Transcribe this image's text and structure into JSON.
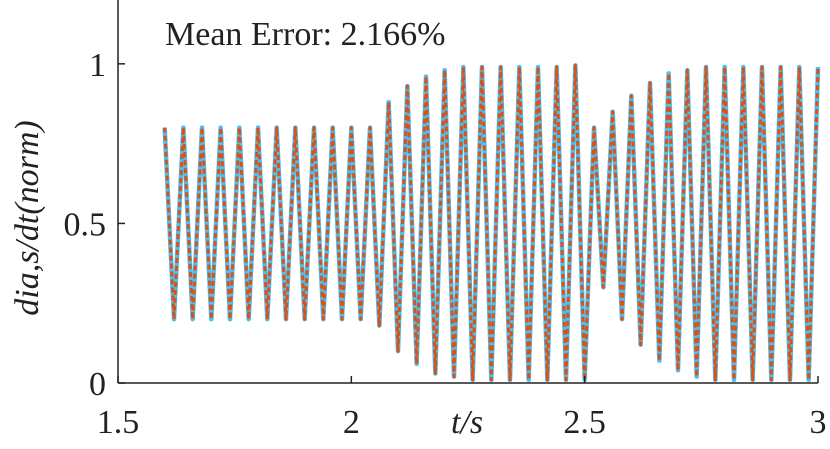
{
  "chart_data": {
    "type": "line",
    "annotation": "Mean Error: 2.166%",
    "annotation_color": "#a0173f",
    "xlabel": "t/s",
    "ylabel": "dia,s/dt(norm)",
    "xlim": [
      1.5,
      3
    ],
    "xticks": [
      1.5,
      2,
      2.5,
      3
    ],
    "ylim": [
      0,
      1.2
    ],
    "yticks": [
      0,
      0.5,
      1
    ],
    "x": [
      1.6,
      1.62,
      1.64,
      1.66,
      1.68,
      1.7,
      1.72,
      1.74,
      1.76,
      1.78,
      1.8,
      1.82,
      1.84,
      1.86,
      1.88,
      1.9,
      1.92,
      1.94,
      1.96,
      1.98,
      2.0,
      2.02,
      2.04,
      2.06,
      2.08,
      2.1,
      2.12,
      2.14,
      2.16,
      2.18,
      2.2,
      2.22,
      2.24,
      2.26,
      2.28,
      2.3,
      2.32,
      2.34,
      2.36,
      2.38,
      2.4,
      2.42,
      2.44,
      2.46,
      2.48,
      2.5,
      2.52,
      2.54,
      2.56,
      2.58,
      2.6,
      2.62,
      2.64,
      2.66,
      2.68,
      2.7,
      2.72,
      2.74,
      2.76,
      2.78,
      2.8,
      2.82,
      2.84,
      2.86,
      2.88,
      2.9,
      2.92,
      2.94,
      2.96,
      2.98,
      3.0
    ],
    "series": [
      {
        "color": "#4dbeee",
        "dashed": false,
        "values": [
          0.8,
          0.2,
          0.8,
          0.2,
          0.8,
          0.2,
          0.8,
          0.2,
          0.8,
          0.2,
          0.8,
          0.2,
          0.8,
          0.2,
          0.8,
          0.2,
          0.8,
          0.2,
          0.8,
          0.2,
          0.8,
          0.2,
          0.8,
          0.18,
          0.88,
          0.1,
          0.93,
          0.06,
          0.96,
          0.03,
          0.98,
          0.02,
          0.99,
          0.01,
          0.99,
          0.01,
          0.99,
          0.01,
          0.99,
          0.01,
          0.99,
          0.01,
          0.99,
          0.01,
          0.995,
          0.01,
          0.8,
          0.3,
          0.85,
          0.2,
          0.9,
          0.12,
          0.94,
          0.07,
          0.97,
          0.04,
          0.98,
          0.02,
          0.99,
          0.01,
          0.99,
          0.01,
          0.99,
          0.01,
          0.99,
          0.01,
          0.99,
          0.01,
          0.99,
          0.01,
          0.99
        ]
      },
      {
        "color": "#d95319",
        "dashed": true,
        "values": [
          0.8,
          0.2,
          0.8,
          0.2,
          0.8,
          0.2,
          0.8,
          0.2,
          0.8,
          0.2,
          0.8,
          0.2,
          0.8,
          0.2,
          0.8,
          0.2,
          0.8,
          0.2,
          0.8,
          0.2,
          0.8,
          0.2,
          0.8,
          0.18,
          0.88,
          0.1,
          0.93,
          0.06,
          0.96,
          0.03,
          0.98,
          0.02,
          0.99,
          0.01,
          0.99,
          0.01,
          0.99,
          0.01,
          0.99,
          0.01,
          0.99,
          0.01,
          0.99,
          0.01,
          0.995,
          0.01,
          0.8,
          0.3,
          0.85,
          0.2,
          0.9,
          0.12,
          0.94,
          0.07,
          0.97,
          0.04,
          0.98,
          0.02,
          0.99,
          0.01,
          0.99,
          0.01,
          0.99,
          0.01,
          0.99,
          0.01,
          0.99,
          0.01,
          0.99,
          0.01,
          0.99
        ]
      }
    ]
  }
}
